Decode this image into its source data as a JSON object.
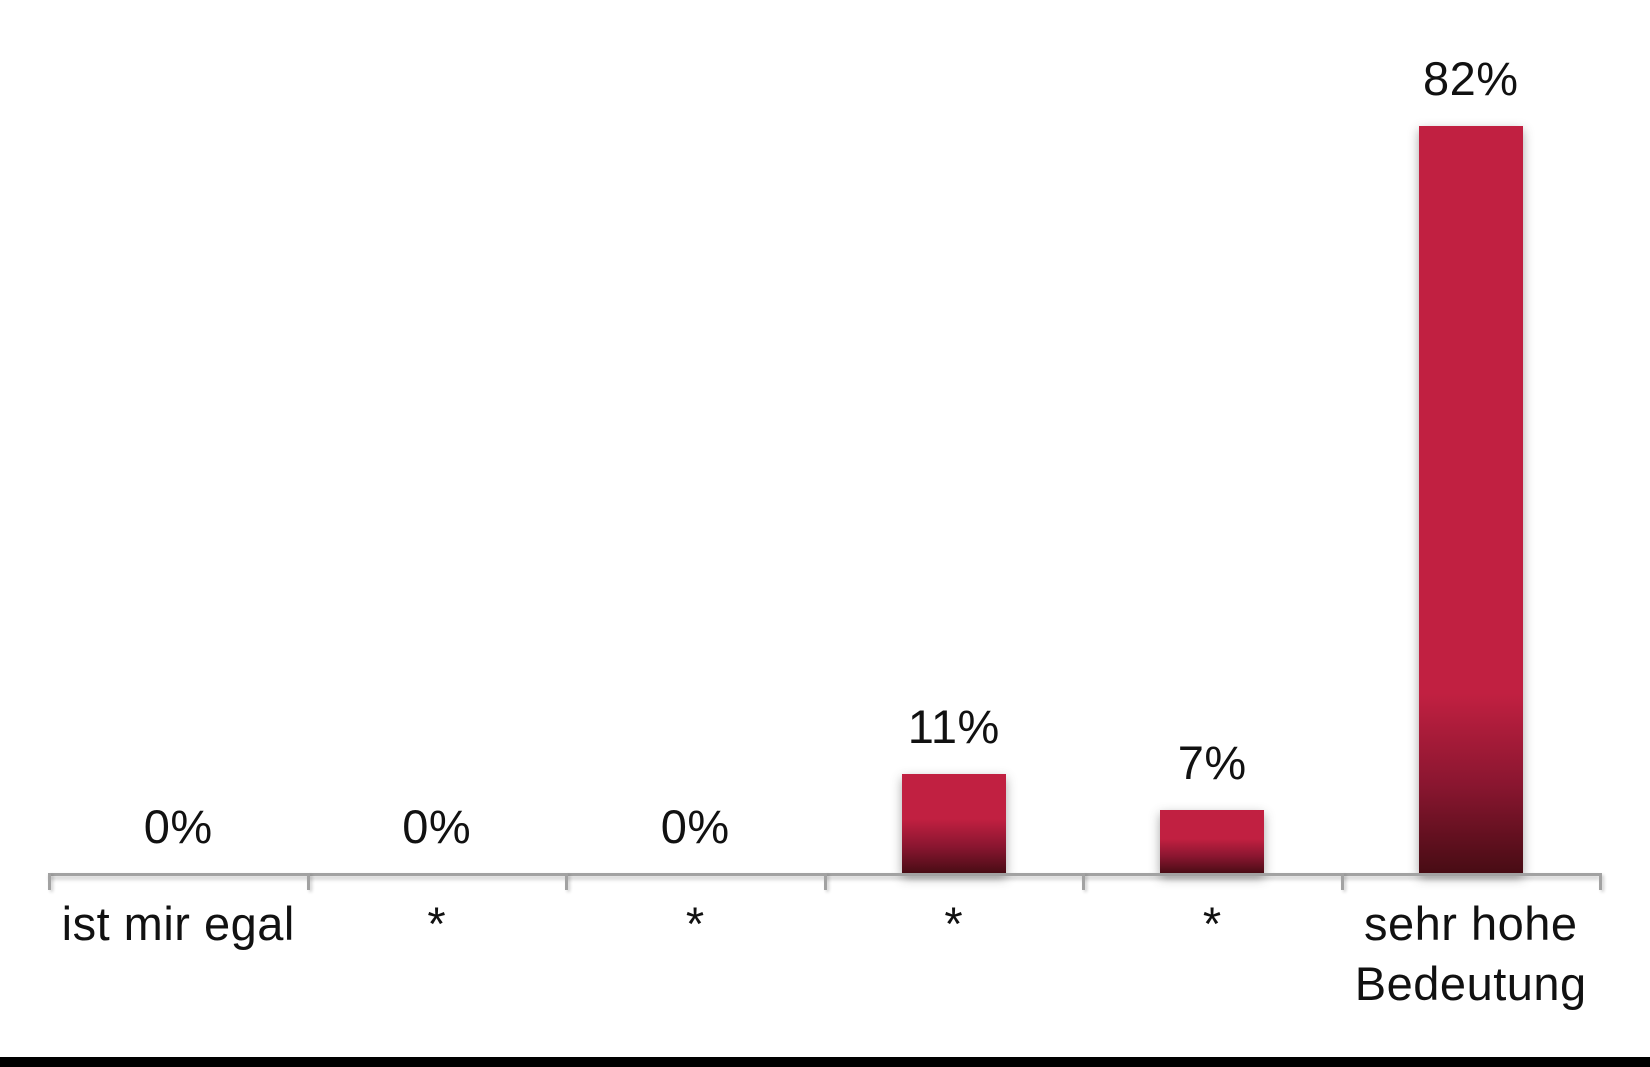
{
  "page": {
    "background": "#ffffff"
  },
  "chart_data": {
    "type": "bar",
    "categories": [
      "ist mir egal",
      "*",
      "*",
      "*",
      "*",
      "sehr hohe\nBedeutung"
    ],
    "values": [
      0,
      0,
      0,
      11,
      7,
      82
    ],
    "value_labels": [
      "0%",
      "0%",
      "0%",
      "11%",
      "7%",
      "82%"
    ],
    "unit": "%",
    "title": "",
    "xlabel": "",
    "ylabel": "",
    "ylim": [
      0,
      90
    ],
    "grid": false,
    "legend": null,
    "layout_hints": {
      "value_labels_position": "above-bar",
      "axis_shown": "x-only",
      "tick_marks": "category-boundaries"
    },
    "colors": {
      "bar_top": "#c12041",
      "bar_bottom": "#470c14",
      "bar_mid": "#8a1630",
      "axis": "#a2a2a2",
      "label_text": "#111111",
      "footer_bar": "#000000"
    }
  }
}
